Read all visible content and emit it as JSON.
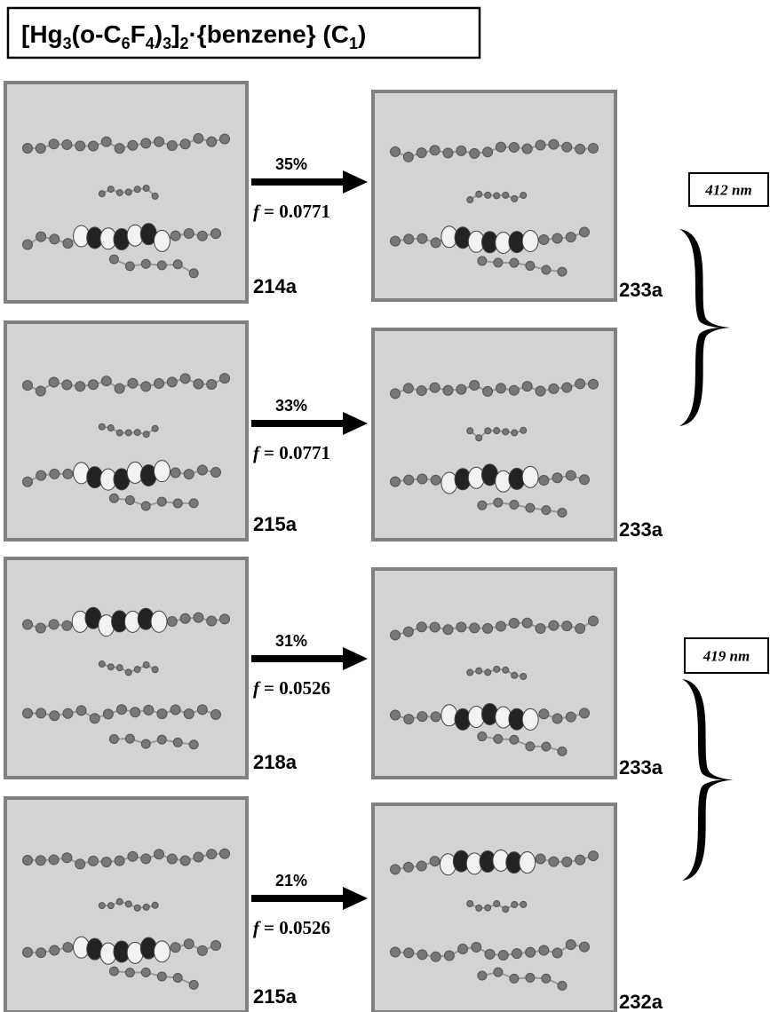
{
  "title": [
    {
      "text": "[Hg"
    },
    {
      "sub": "3"
    },
    {
      "text": "(o-C"
    },
    {
      "sub": "6"
    },
    {
      "text": "F"
    },
    {
      "sub": "4"
    },
    {
      "text": ")"
    },
    {
      "sub": "3"
    },
    {
      "text": "]"
    },
    {
      "sub": "2"
    },
    {
      "text": "·{benzene} (C"
    },
    {
      "sub": "1"
    },
    {
      "text": ")"
    }
  ],
  "transitions": [
    {
      "from": "214a",
      "to": "233a",
      "percent": "35%",
      "f_symbol": "f",
      "f_value": "= 0.0771"
    },
    {
      "from": "215a",
      "to": "233a",
      "percent": "33%",
      "f_symbol": "f",
      "f_value": "= 0.0771"
    },
    {
      "from": "218a",
      "to": "233a",
      "percent": "31%",
      "f_symbol": "f",
      "f_value": "= 0.0526"
    },
    {
      "from": "215a",
      "to": "232a",
      "percent": "21%",
      "f_symbol": "f",
      "f_value": "= 0.0526"
    }
  ],
  "bands": [
    {
      "label": "412 nm"
    },
    {
      "label": "419 nm"
    }
  ]
}
